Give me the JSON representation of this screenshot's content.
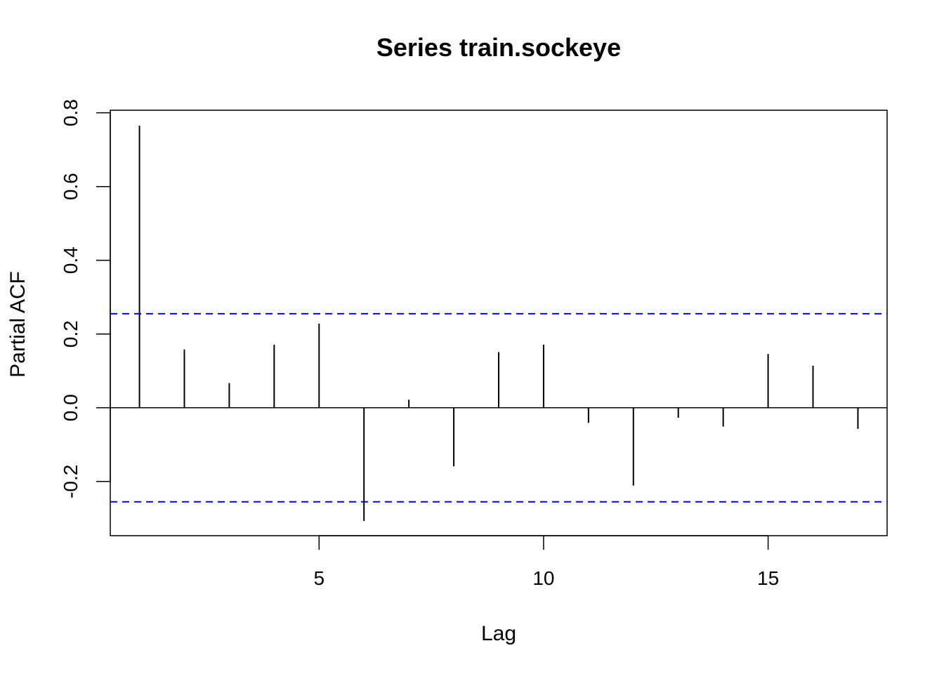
{
  "chart_data": {
    "type": "bar",
    "title": "Series  train.sockeye",
    "xlabel": "Lag",
    "ylabel": "Partial ACF",
    "lags": [
      1,
      2,
      3,
      4,
      5,
      6,
      7,
      8,
      9,
      10,
      11,
      12,
      13,
      14,
      15,
      16,
      17
    ],
    "values": [
      0.765,
      0.158,
      0.067,
      0.171,
      0.228,
      -0.307,
      0.022,
      -0.159,
      0.151,
      0.171,
      -0.041,
      -0.211,
      -0.027,
      -0.051,
      0.146,
      0.114,
      -0.057
    ],
    "confidence_bound": 0.255,
    "xlim": [
      0.35,
      17.65
    ],
    "ylim": [
      -0.347,
      0.807
    ],
    "xticks": [
      5,
      10,
      15
    ],
    "yticks": [
      -0.2,
      0.0,
      0.2,
      0.4,
      0.6,
      0.8
    ],
    "ytick_labels": [
      "-0.2",
      "0.0",
      "0.2",
      "0.4",
      "0.6",
      "0.8"
    ],
    "colors": {
      "bars": "#000000",
      "confidence_lines": "#0000ff"
    }
  }
}
